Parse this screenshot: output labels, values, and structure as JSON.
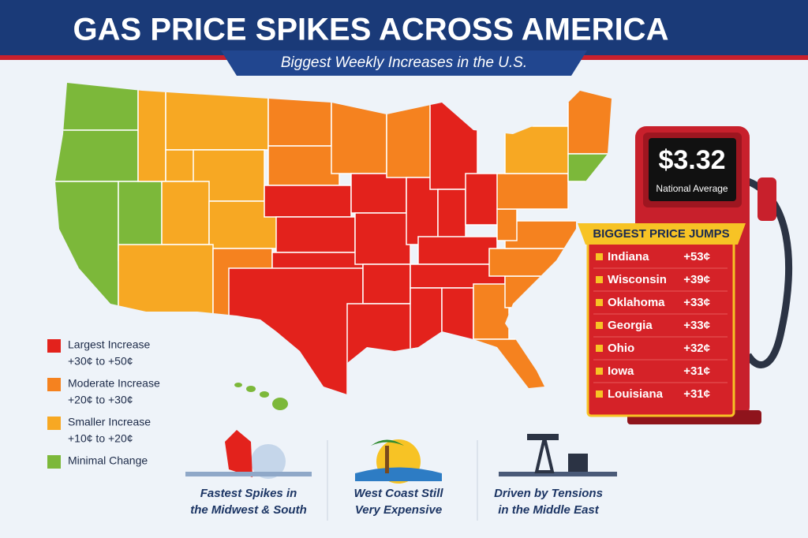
{
  "header": {
    "title": "GAS PRICE SPIKES ACROSS AMERICA",
    "subtitle": "Biggest Weekly Increases in the U.S."
  },
  "pump": {
    "price": "$3.32",
    "label": "National Average"
  },
  "price_jumps": {
    "title": "BIGGEST PRICE JUMPS",
    "items": [
      {
        "state": "Indiana",
        "change": "+53¢"
      },
      {
        "state": "Wisconsin",
        "change": "+39¢"
      },
      {
        "state": "Oklahoma",
        "change": "+33¢"
      },
      {
        "state": "Georgia",
        "change": "+33¢"
      },
      {
        "state": "Ohio",
        "change": "+32¢"
      },
      {
        "state": "Iowa",
        "change": "+31¢"
      },
      {
        "state": "Louisiana",
        "change": "+31¢"
      }
    ]
  },
  "legend": [
    {
      "label": "Largest Increase",
      "range": "+30¢ to +50¢",
      "color": "#e3221c"
    },
    {
      "label": "Moderate Increase",
      "range": "+20¢ to +30¢",
      "color": "#f5821f"
    },
    {
      "label": "Smaller Increase",
      "range": "+10¢ to +20¢",
      "color": "#f7a823"
    },
    {
      "label": "Minimal Change",
      "color": "#7cb83a"
    }
  ],
  "notes": [
    {
      "lines": [
        "Fastest Spikes in",
        "the Midwest & South"
      ]
    },
    {
      "lines": [
        "West Coast Still",
        "Very Expensive"
      ]
    },
    {
      "lines": [
        "Driven by Tensions",
        "in the Middle East"
      ]
    }
  ]
}
